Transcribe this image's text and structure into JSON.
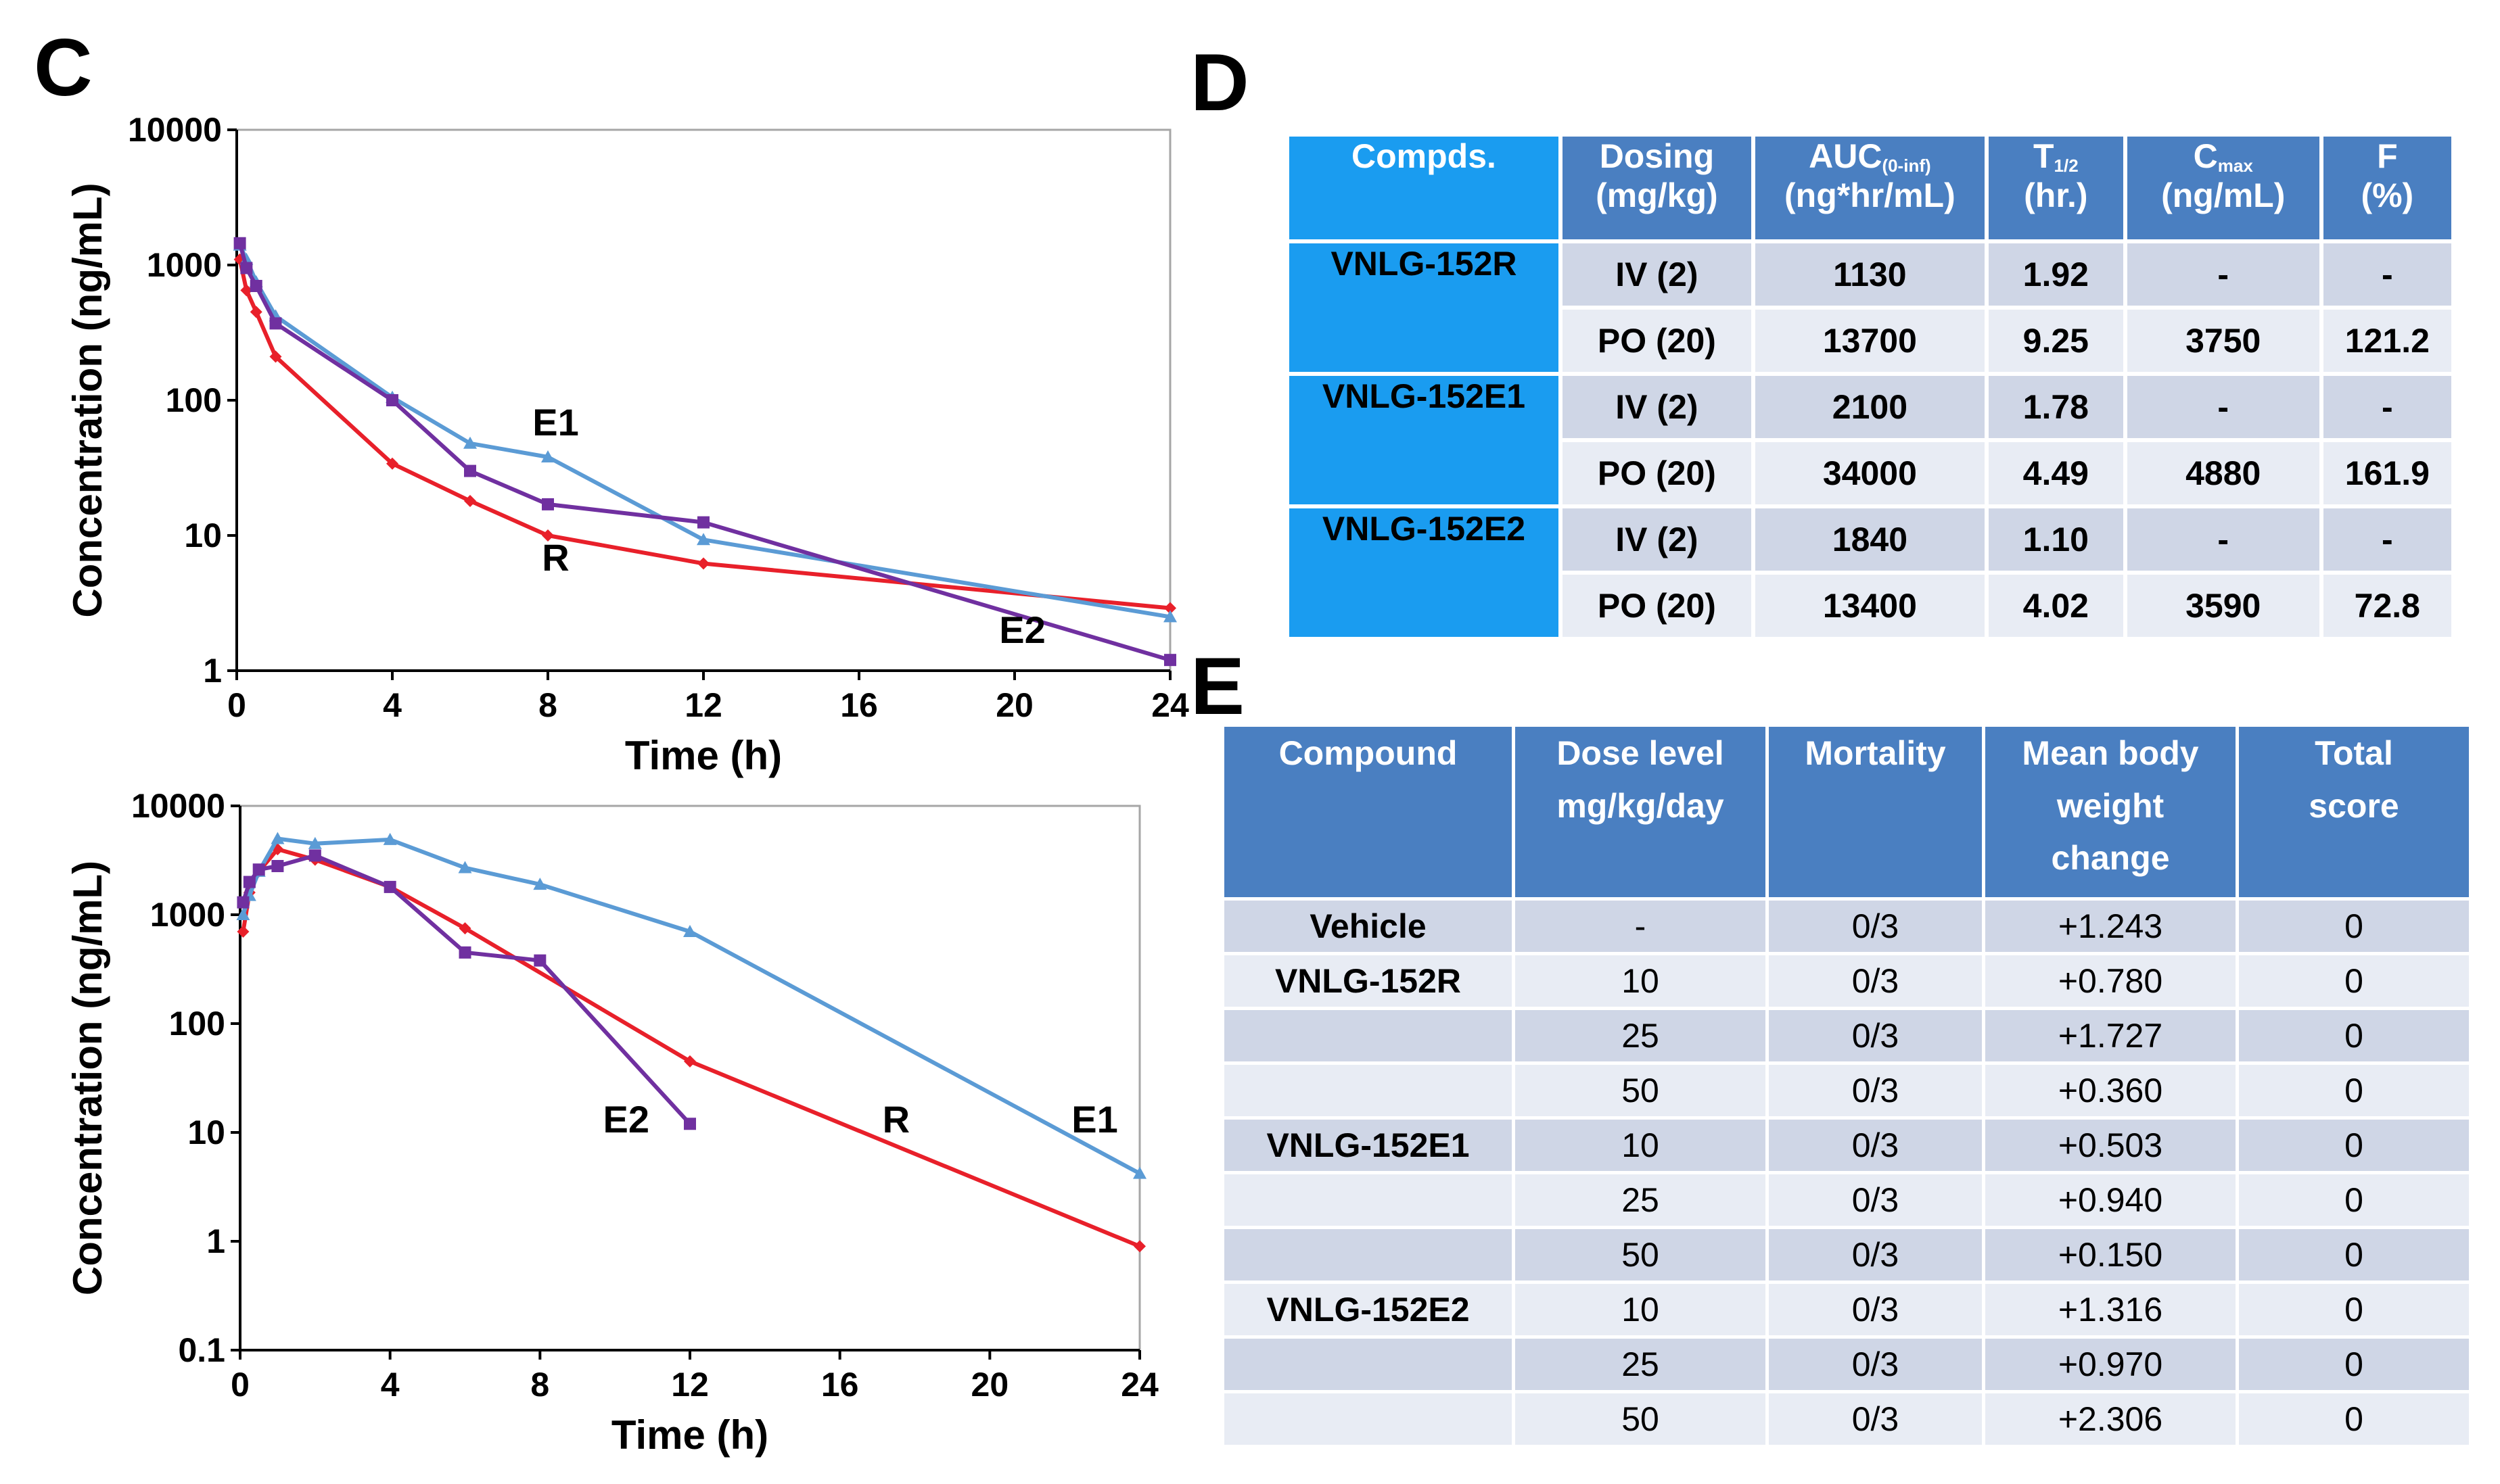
{
  "panels": {
    "c": "C",
    "d": "D",
    "e": "E"
  },
  "colors": {
    "R": "#e8202a",
    "E1": "#5b9bd5",
    "E2": "#7030a0"
  },
  "chart_data": [
    {
      "type": "line",
      "title": "",
      "xlabel": "Time (h)",
      "ylabel": "Concentration (ng/mL)",
      "yscale": "log",
      "xlim": [
        0,
        24
      ],
      "ylim": [
        1,
        10000
      ],
      "xticks": [
        "0",
        "4",
        "8",
        "12",
        "16",
        "20",
        "24"
      ],
      "yticks": [
        "1",
        "10",
        "100",
        "1000",
        "10000"
      ],
      "series": [
        {
          "name": "R",
          "x": [
            0.08,
            0.25,
            0.5,
            1,
            4,
            6,
            8,
            12,
            24
          ],
          "y": [
            1100,
            650,
            450,
            210,
            34,
            18,
            10,
            6.2,
            2.9
          ]
        },
        {
          "name": "E1",
          "x": [
            0.08,
            0.25,
            0.5,
            1,
            4,
            6,
            8,
            12,
            24
          ],
          "y": [
            1400,
            1100,
            750,
            420,
            105,
            48,
            38,
            9.3,
            2.5
          ]
        },
        {
          "name": "E2",
          "x": [
            0.08,
            0.25,
            0.5,
            1,
            4,
            6,
            8,
            12,
            24
          ],
          "y": [
            1450,
            950,
            700,
            370,
            100,
            30,
            17,
            12.5,
            1.2
          ]
        }
      ],
      "labels": [
        {
          "text": "E1",
          "series": "E1",
          "x": 8.2,
          "y": 55
        },
        {
          "text": "R",
          "series": "R",
          "x": 8.2,
          "y": 5.5
        },
        {
          "text": "E2",
          "series": "E2",
          "x": 20.2,
          "y": 1.6
        }
      ]
    },
    {
      "type": "line",
      "title": "",
      "xlabel": "Time (h)",
      "ylabel": "Concentration (ng/mL)",
      "yscale": "log",
      "xlim": [
        0,
        24
      ],
      "ylim": [
        0.1,
        10000
      ],
      "xticks": [
        "0",
        "4",
        "8",
        "12",
        "16",
        "20",
        "24"
      ],
      "yticks": [
        "0.1",
        "1",
        "10",
        "100",
        "1000",
        "10000"
      ],
      "series": [
        {
          "name": "R",
          "x": [
            0.08,
            0.25,
            0.5,
            1,
            2,
            4,
            6,
            12,
            24
          ],
          "y": [
            700,
            1600,
            2500,
            4000,
            3200,
            1800,
            750,
            45,
            0.9
          ]
        },
        {
          "name": "E1",
          "x": [
            0.08,
            0.25,
            0.5,
            1,
            2,
            4,
            6,
            8,
            12,
            24
          ],
          "y": [
            1000,
            1500,
            2500,
            5000,
            4500,
            4900,
            2700,
            1900,
            700,
            4.2
          ]
        },
        {
          "name": "E2",
          "x": [
            0.08,
            0.25,
            0.5,
            1,
            2,
            4,
            6,
            8,
            12
          ],
          "y": [
            1300,
            2000,
            2600,
            2800,
            3500,
            1800,
            450,
            380,
            12
          ]
        }
      ],
      "labels": [
        {
          "text": "E2",
          "series": "E2",
          "x": 10.3,
          "y": 10
        },
        {
          "text": "R",
          "series": "R",
          "x": 17.5,
          "y": 10
        },
        {
          "text": "E1",
          "series": "E1",
          "x": 22.8,
          "y": 10
        }
      ]
    },
    {
      "type": "table",
      "headers": {
        "compds": "Compds.",
        "dosing_l1": "Dosing",
        "dosing_l2": "(mg/kg)",
        "auc_main": "AUC",
        "auc_sub": "(0-inf)",
        "auc_l2": "(ng*hr/mL)",
        "t_main": "T",
        "t_sub": "1/2",
        "t_l2": "(hr.)",
        "c_main": "C",
        "c_sub": "max",
        "c_l2": "(ng/mL)",
        "f_l1": "F",
        "f_l2": "(%)"
      },
      "compounds": [
        "VNLG-152R",
        "VNLG-152E1",
        "VNLG-152E2"
      ],
      "rows": [
        [
          "IV (2)",
          "1130",
          "1.92",
          "-",
          "-"
        ],
        [
          "PO (20)",
          "13700",
          "9.25",
          "3750",
          "121.2"
        ],
        [
          "IV (2)",
          "2100",
          "1.78",
          "-",
          "-"
        ],
        [
          "PO (20)",
          "34000",
          "4.49",
          "4880",
          "161.9"
        ],
        [
          "IV (2)",
          "1840",
          "1.10",
          "-",
          "-"
        ],
        [
          "PO (20)",
          "13400",
          "4.02",
          "3590",
          "72.8"
        ]
      ]
    },
    {
      "type": "table",
      "headers": {
        "compound": "Compound",
        "dose_l1": "Dose level",
        "dose_l2": "mg/kg/day",
        "mortality": "Mortality",
        "weight_l1": "Mean body",
        "weight_l2": "weight",
        "weight_l3": "change",
        "score_l1": "Total",
        "score_l2": "score"
      },
      "rows": [
        [
          "Vehicle",
          "-",
          "0/3",
          "+1.243",
          "0"
        ],
        [
          "VNLG-152R",
          "10",
          "0/3",
          "+0.780",
          "0"
        ],
        [
          "",
          "25",
          "0/3",
          "+1.727",
          "0"
        ],
        [
          "",
          "50",
          "0/3",
          "+0.360",
          "0"
        ],
        [
          "VNLG-152E1",
          "10",
          "0/3",
          "+0.503",
          "0"
        ],
        [
          "",
          "25",
          "0/3",
          "+0.940",
          "0"
        ],
        [
          "",
          "50",
          "0/3",
          "+0.150",
          "0"
        ],
        [
          "VNLG-152E2",
          "10",
          "0/3",
          "+1.316",
          "0"
        ],
        [
          "",
          "25",
          "0/3",
          "+0.970",
          "0"
        ],
        [
          "",
          "50",
          "0/3",
          "+2.306",
          "0"
        ]
      ]
    }
  ]
}
